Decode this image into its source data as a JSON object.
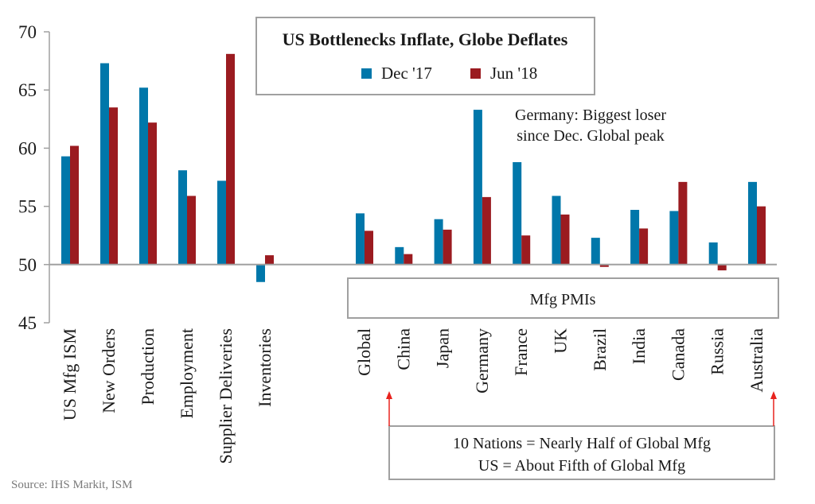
{
  "chart_data": {
    "type": "bar",
    "title": "US Bottlenecks Inflate, Globe Deflates",
    "ylim": [
      45,
      70
    ],
    "yticks": [
      45,
      50,
      55,
      60,
      65,
      70
    ],
    "baseline": 50,
    "grid": false,
    "legend_position": "top-center",
    "groups": [
      {
        "categories": [
          "US Mfg ISM",
          "New Orders",
          "Production",
          "Employment",
          "Supplier Deliveries",
          "Inventories"
        ]
      },
      {
        "label": "Mfg PMIs",
        "categories": [
          "Global",
          "China",
          "Japan",
          "Germany",
          "France",
          "UK",
          "Brazil",
          "India",
          "Canada",
          "Russia",
          "Australia"
        ]
      }
    ],
    "series": [
      {
        "name": "Dec '17",
        "color": "#0077aa",
        "values": [
          59.3,
          67.3,
          65.2,
          58.1,
          57.2,
          48.5,
          54.4,
          51.5,
          53.9,
          63.3,
          58.8,
          55.9,
          52.3,
          54.7,
          54.6,
          51.9,
          57.1
        ]
      },
      {
        "name": "Jun '18",
        "color": "#9b1b20",
        "values": [
          60.2,
          63.5,
          62.2,
          55.9,
          68.1,
          50.8,
          52.9,
          50.9,
          53.0,
          55.8,
          52.5,
          54.3,
          49.8,
          53.1,
          57.1,
          49.5,
          55.0
        ]
      }
    ],
    "annotations": {
      "germany_line1": "Germany: Biggest loser",
      "germany_line2": "since Dec. Global peak",
      "share_line1": "10 Nations = Nearly Half of Global Mfg",
      "share_line2": "US = About Fifth of Global Mfg",
      "arrow_color": "#e8231e"
    },
    "source": "Source: IHS Markit, ISM"
  }
}
